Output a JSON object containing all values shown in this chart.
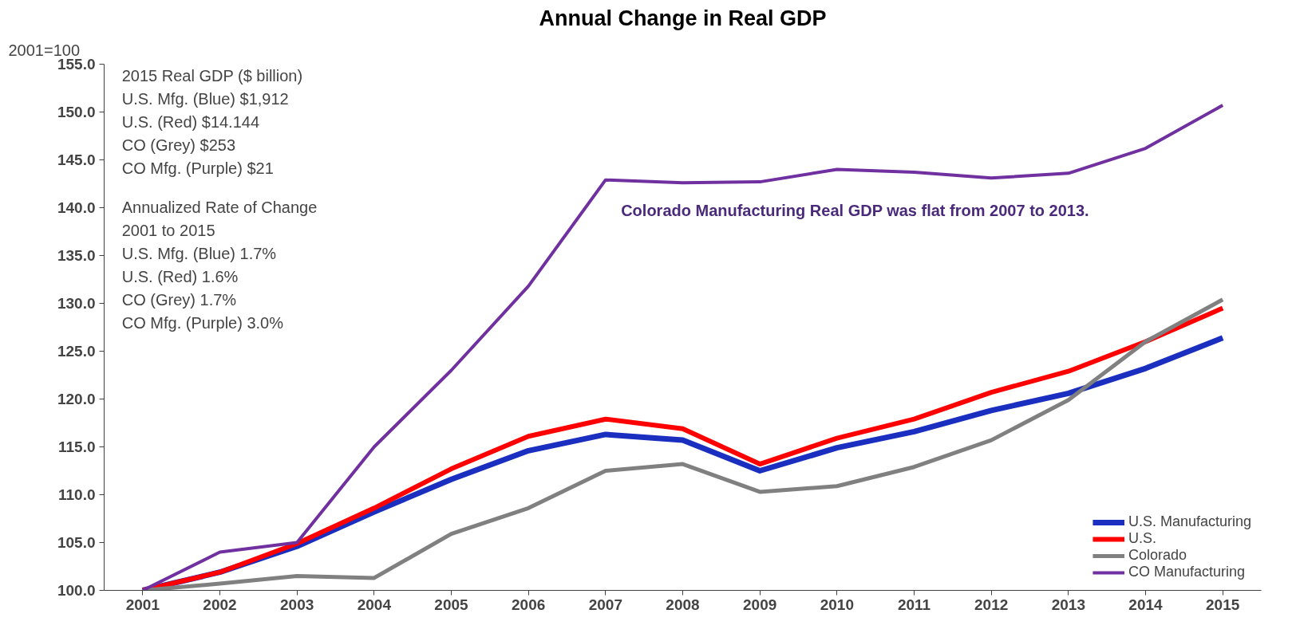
{
  "chart_data": {
    "type": "line",
    "title": "Annual Change in Real GDP",
    "ylabel": "2001=100",
    "categories": [
      "2001",
      "2002",
      "2003",
      "2004",
      "2005",
      "2006",
      "2007",
      "2008",
      "2009",
      "2010",
      "2011",
      "2012",
      "2013",
      "2014",
      "2015"
    ],
    "series": [
      {
        "name": "U.S. Manufacturing",
        "color": "#1a2fbf",
        "values": [
          100,
          101.9,
          104.6,
          108.2,
          111.6,
          114.6,
          116.3,
          115.7,
          112.5,
          114.9,
          116.6,
          118.8,
          120.6,
          123.2,
          126.4
        ]
      },
      {
        "name": "U.S.",
        "color": "#ff0000",
        "values": [
          100,
          101.9,
          104.9,
          108.6,
          112.7,
          116.1,
          117.9,
          116.9,
          113.2,
          115.9,
          117.9,
          120.7,
          122.9,
          126.0,
          129.5
        ]
      },
      {
        "name": "Colorado",
        "color": "#808080",
        "values": [
          100,
          100.7,
          101.5,
          101.3,
          105.9,
          108.6,
          112.5,
          113.2,
          110.3,
          110.9,
          112.9,
          115.7,
          119.9,
          126.0,
          130.4
        ]
      },
      {
        "name": "CO Manufacturing",
        "color": "#7030a0",
        "values": [
          100,
          104.0,
          105.0,
          115.0,
          123.0,
          131.8,
          142.9,
          142.6,
          142.7,
          144.0,
          143.7,
          143.1,
          143.6,
          146.2,
          150.7
        ]
      }
    ],
    "ylim": [
      100,
      155
    ],
    "yticks": [
      {
        "value": 100,
        "label": "100.0"
      },
      {
        "value": 105,
        "label": "105.0"
      },
      {
        "value": 110,
        "label": "110.0"
      },
      {
        "value": 115,
        "label": "115.0"
      },
      {
        "value": 120,
        "label": "120.0"
      },
      {
        "value": 125,
        "label": "125.0"
      },
      {
        "value": 130,
        "label": "130.0"
      },
      {
        "value": 135,
        "label": "135.0"
      },
      {
        "value": 140,
        "label": "140.0"
      },
      {
        "value": 145,
        "label": "145.0"
      },
      {
        "value": 150,
        "label": "150.0"
      },
      {
        "value": 155,
        "label": "155.0"
      }
    ],
    "grid": false,
    "legend": "bottom right",
    "marker": "none",
    "line_style": "solid",
    "annotations": [
      "2015 Real GDP ($ billion)\nU.S. Mfg. (Blue) $1,912\nU.S. (Red) $14.144\nCO (Grey)  $253\nCO Mfg. (Purple) $21",
      "Annualized Rate of  Change\n2001 to 2015\nU.S. Mfg. (Blue) 1.7%\nU.S. (Red) 1.6%\nCO (Grey)  1.7%\nCO Mfg. (Purple)  3.0%",
      "Colorado Manufacturing Real GDP was flat from 2007 to 2013."
    ]
  }
}
